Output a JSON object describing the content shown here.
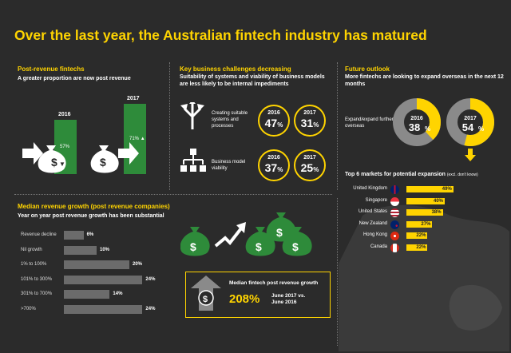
{
  "title": "Over the last year, the Australian fintech industry has matured",
  "post_revenue": {
    "heading": "Post-revenue fintechs",
    "subheading": "A greater proportion are now post revenue",
    "bars": [
      {
        "year": "2016",
        "value_label": "57%",
        "value": 57
      },
      {
        "year": "2017",
        "value_label": "71%",
        "value": 71,
        "trend": "▲"
      }
    ]
  },
  "challenges": {
    "heading": "Key business challenges decreasing",
    "subheading": "Suitability of systems and viability of business models are less likely to be internal impediments",
    "items": [
      {
        "label": "Creating suitable systems and processes",
        "y2016": "2016",
        "v2016": "47",
        "y2017": "2017",
        "v2017": "31",
        "pct": "%"
      },
      {
        "label": "Business model viability",
        "y2016": "2016",
        "v2016": "37",
        "y2017": "2017",
        "v2017": "25",
        "pct": "%"
      }
    ]
  },
  "outlook": {
    "heading": "Future outlook",
    "subheading": "More fintechs are looking to expand overseas in the next 12 months",
    "label": "Expand/expand further overseas",
    "donuts": [
      {
        "year": "2016",
        "value": "38",
        "pct": "%",
        "fraction": 0.38
      },
      {
        "year": "2017",
        "value": "54",
        "pct": "%",
        "fraction": 0.54
      }
    ]
  },
  "markets": {
    "heading": "Top 6 markets for potential expansion",
    "note": "(excl. don't know)",
    "rows": [
      {
        "country": "United Kingdom",
        "label": "49%",
        "value": 49,
        "flag": "uk-flag-icon"
      },
      {
        "country": "Singapore",
        "label": "40%",
        "value": 40,
        "flag": "singapore-flag-icon"
      },
      {
        "country": "United States",
        "label": "38%",
        "value": 38,
        "flag": "us-flag-icon"
      },
      {
        "country": "New Zealand",
        "label": "27%",
        "value": 27,
        "flag": "nz-flag-icon"
      },
      {
        "country": "Hong Kong",
        "label": "22%",
        "value": 22,
        "flag": "hong-kong-flag-icon"
      },
      {
        "country": "Canada",
        "label": "22%",
        "value": 22,
        "flag": "canada-flag-icon"
      }
    ]
  },
  "revenue_growth": {
    "heading": "Median revenue growth (post revenue companies)",
    "subheading": "Year on year post revenue growth has been substantial",
    "rows": [
      {
        "label": "Revenue decline",
        "value_label": "6%",
        "value": 6
      },
      {
        "label": "Nil growth",
        "value_label": "10%",
        "value": 10
      },
      {
        "label": "1% to 100%",
        "value_label": "20%",
        "value": 20
      },
      {
        "label": "101% to 300%",
        "value_label": "24%",
        "value": 24
      },
      {
        "label": "301% to 700%",
        "value_label": "14%",
        "value": 14
      },
      {
        "label": ">700%",
        "value_label": "24%",
        "value": 24
      }
    ]
  },
  "median_box": {
    "label": "Median fintech post revenue growth",
    "value": "208%",
    "period": "June 2017 vs. June 2016"
  },
  "colors": {
    "accent": "#ffd400",
    "green": "#2e8b3a",
    "background": "#2b2b2b",
    "gray_bar": "#6b6b6b"
  }
}
